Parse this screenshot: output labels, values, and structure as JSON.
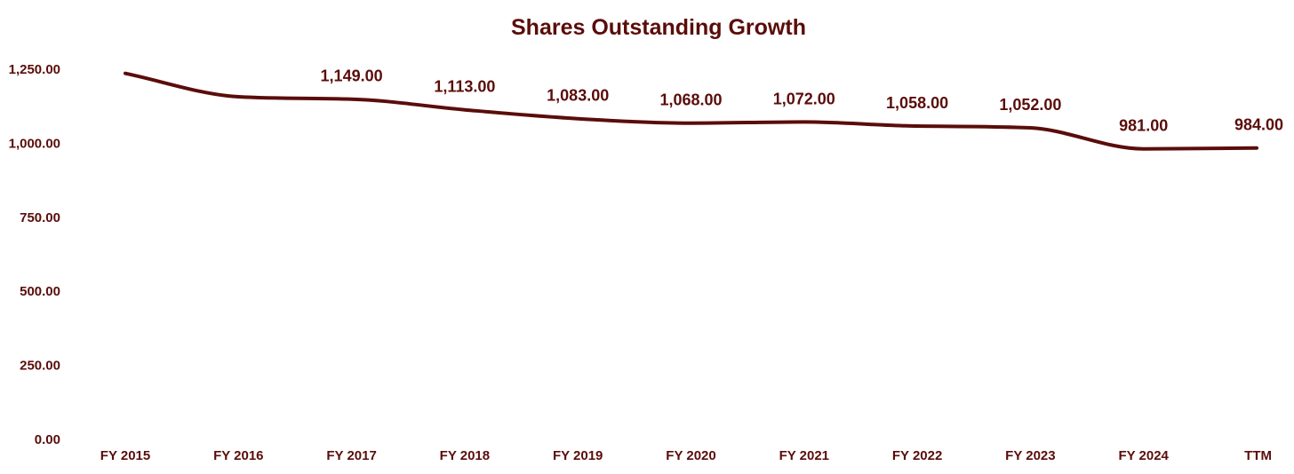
{
  "chart_data": {
    "type": "line",
    "title": "Shares Outstanding Growth",
    "xlabel": "",
    "ylabel": "",
    "categories": [
      "FY 2015",
      "FY 2016",
      "FY 2017",
      "FY 2018",
      "FY 2019",
      "FY 2020",
      "FY 2021",
      "FY 2022",
      "FY 2023",
      "FY 2024",
      "TTM"
    ],
    "y_ticks": [
      "0.00",
      "250.00",
      "500.00",
      "750.00",
      "1,000.00",
      "1,250.00"
    ],
    "ylim": [
      0,
      1250
    ],
    "grid": false,
    "legend": "none",
    "series": [
      {
        "values": [
          1236,
          1157,
          1149,
          1113,
          1083,
          1068,
          1072,
          1058,
          1052,
          981,
          984
        ],
        "data_labels": [
          "",
          "",
          "1,149.00",
          "1,113.00",
          "1,083.00",
          "1,068.00",
          "1,072.00",
          "1,058.00",
          "1,052.00",
          "981.00",
          "984.00"
        ],
        "color": "#5a0d0a"
      }
    ],
    "text_color": "#5a0d0a"
  }
}
